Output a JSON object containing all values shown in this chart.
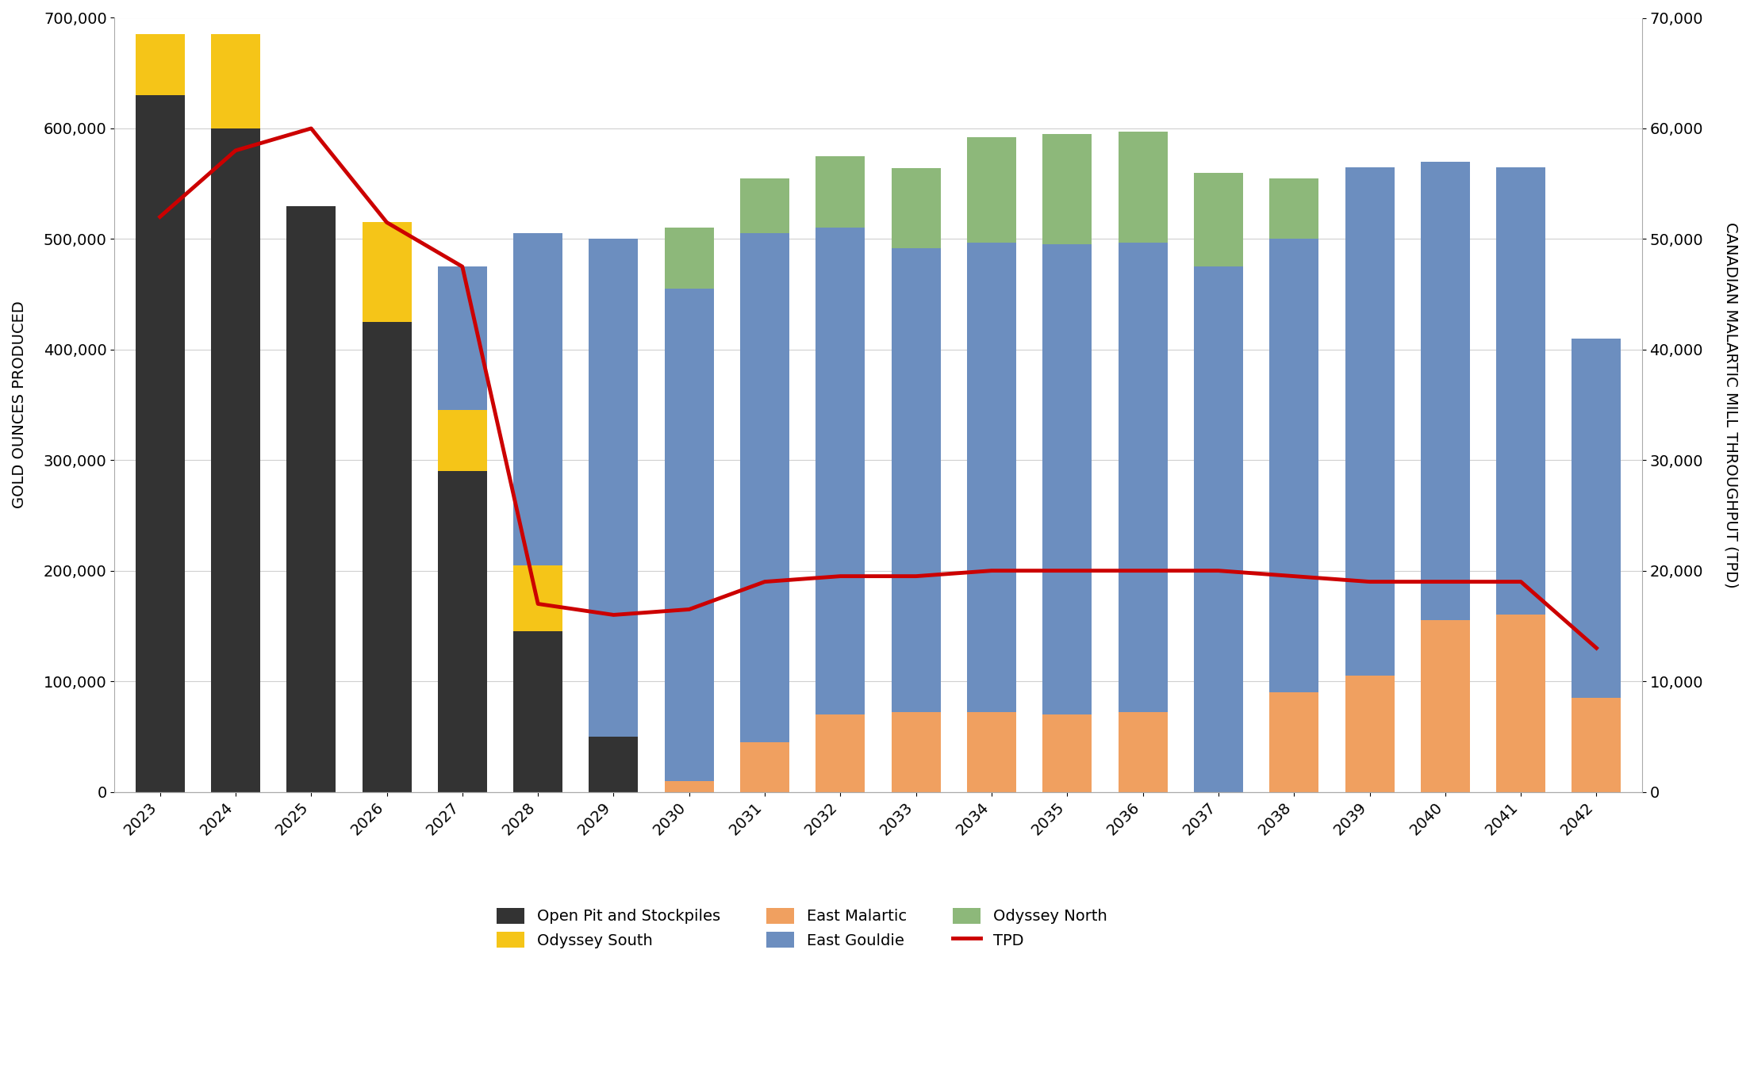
{
  "years": [
    2023,
    2024,
    2025,
    2026,
    2027,
    2028,
    2029,
    2030,
    2031,
    2032,
    2033,
    2034,
    2035,
    2036,
    2037,
    2038,
    2039,
    2040,
    2041,
    2042
  ],
  "open_pit": [
    630000,
    600000,
    530000,
    425000,
    290000,
    145000,
    50000,
    0,
    0,
    0,
    0,
    0,
    0,
    0,
    0,
    0,
    0,
    0,
    0,
    0
  ],
  "odyssey_south": [
    55000,
    85000,
    0,
    90000,
    55000,
    60000,
    0,
    0,
    0,
    0,
    0,
    0,
    0,
    0,
    0,
    0,
    0,
    0,
    0,
    0
  ],
  "east_malartic": [
    0,
    0,
    0,
    0,
    0,
    0,
    0,
    10000,
    45000,
    70000,
    72000,
    72000,
    70000,
    72000,
    0,
    90000,
    105000,
    155000,
    160000,
    85000
  ],
  "east_gouldie": [
    0,
    0,
    0,
    0,
    130000,
    300000,
    450000,
    445000,
    460000,
    440000,
    420000,
    425000,
    425000,
    425000,
    475000,
    410000,
    460000,
    415000,
    405000,
    325000
  ],
  "odyssey_north": [
    0,
    0,
    0,
    0,
    0,
    0,
    0,
    55000,
    50000,
    65000,
    72000,
    95000,
    100000,
    100000,
    85000,
    55000,
    0,
    0,
    0,
    0
  ],
  "tpd": [
    52000,
    58000,
    60000,
    51500,
    47500,
    17000,
    16000,
    16500,
    19000,
    19500,
    19500,
    20000,
    20000,
    20000,
    20000,
    19500,
    19000,
    19000,
    19000,
    13000
  ],
  "colors": {
    "open_pit": "#333333",
    "odyssey_south": "#f5c518",
    "east_malartic": "#f0a060",
    "east_gouldie": "#6c8ebf",
    "odyssey_north": "#8db87a"
  },
  "tpd_color": "#cc0000",
  "ylabel_left": "GOLD OUNCES PRODUCED",
  "ylabel_right": "CANADIAN MALARTIC MILL THROUGHPUT (TPD)",
  "ylim_left": [
    0,
    700000
  ],
  "ylim_right": [
    0,
    70000
  ],
  "yticks_left": [
    0,
    100000,
    200000,
    300000,
    400000,
    500000,
    600000,
    700000
  ],
  "yticks_right": [
    0,
    10000,
    20000,
    30000,
    40000,
    50000,
    60000,
    70000
  ],
  "ytick_labels_left": [
    "0",
    "100,000",
    "200,000",
    "300,000",
    "400,000",
    "500,000",
    "600,000",
    "700,000"
  ],
  "ytick_labels_right": [
    "0",
    "10,000",
    "20,000",
    "30,000",
    "40,000",
    "50,000",
    "60,000",
    "70,000"
  ],
  "background_color": "#ffffff",
  "grid_color": "#d0d0d0"
}
